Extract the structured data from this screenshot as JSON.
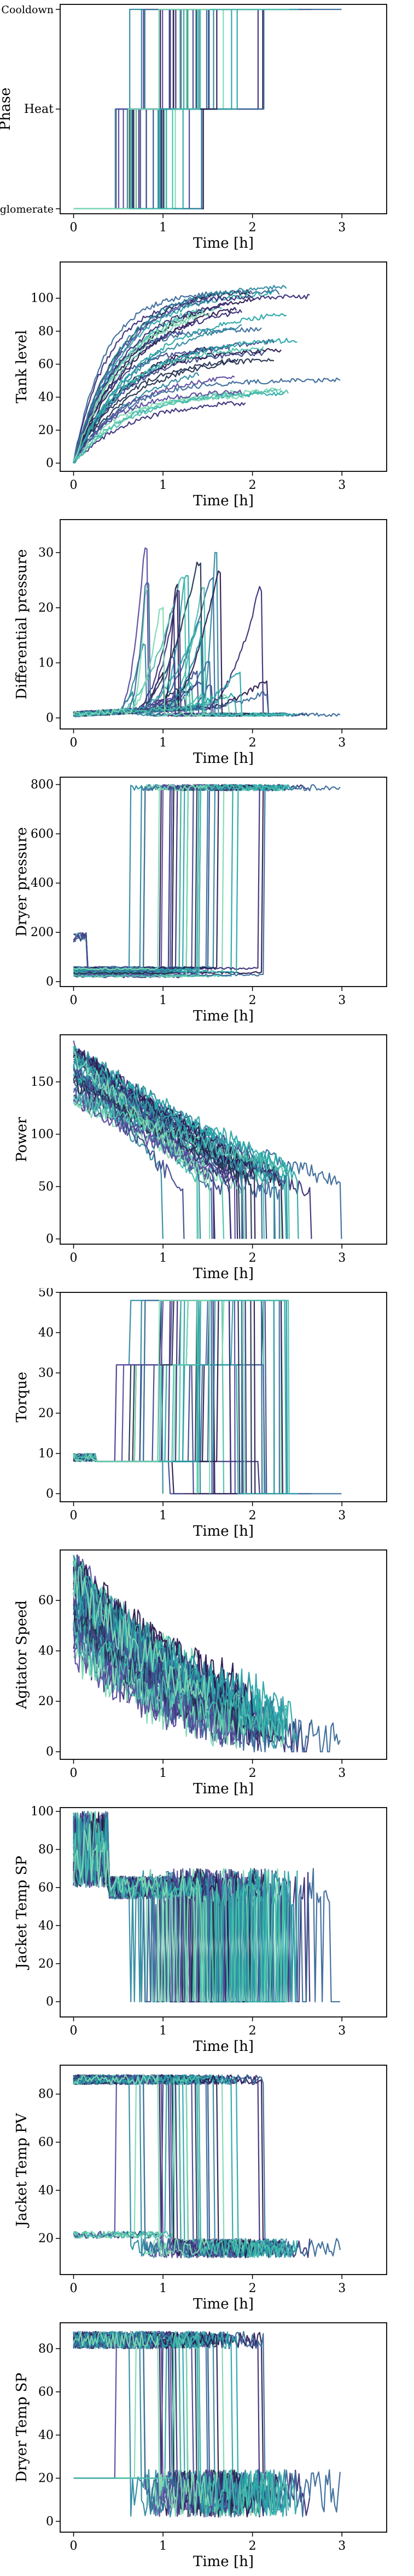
{
  "palette": [
    "#2b1a4f",
    "#3b2f78",
    "#3f4a8c",
    "#3b6a9a",
    "#2e8aa0",
    "#2aa7a8",
    "#4cc0ac",
    "#7ed9b3",
    "#24314f",
    "#5b4a9e"
  ],
  "chart_data": [
    {
      "type": "line",
      "title": "",
      "xlabel": "Time [h]",
      "ylabel": "Phase",
      "xlim": [
        -0.15,
        3.5
      ],
      "ylim": [
        -0.05,
        2.05
      ],
      "xticks": [
        0,
        1,
        2,
        3
      ],
      "xtick_labels": [
        "0",
        "1",
        "2",
        "3"
      ],
      "yticks": [
        0,
        1,
        2
      ],
      "ytick_labels": [
        "Deagglomerate",
        "Heat",
        "Cooldown"
      ],
      "grid": false,
      "legend": "none",
      "series_count": 38,
      "typical": {
        "heat_start_h": [
          0.45,
          1.45
        ],
        "cooldown_start_h": [
          0.9,
          2.7
        ],
        "end_h": [
          1.3,
          3.3
        ]
      }
    },
    {
      "type": "line",
      "title": "",
      "xlabel": "Time [h]",
      "ylabel": "Tank level",
      "xlim": [
        -0.15,
        3.5
      ],
      "ylim": [
        -5,
        122
      ],
      "xticks": [
        0,
        1,
        2,
        3
      ],
      "xtick_labels": [
        "0",
        "1",
        "2",
        "3"
      ],
      "yticks": [
        0,
        20,
        40,
        60,
        80,
        100
      ],
      "ytick_labels": [
        "0",
        "20",
        "40",
        "60",
        "80",
        "100"
      ],
      "grid": false,
      "legend": "none",
      "series_count": 38,
      "typical": {
        "final_level": [
          35,
          115
        ]
      }
    },
    {
      "type": "line",
      "title": "",
      "xlabel": "Time [h]",
      "ylabel": "Differential pressure",
      "xlim": [
        -0.15,
        3.5
      ],
      "ylim": [
        -2,
        36
      ],
      "xticks": [
        0,
        1,
        2,
        3
      ],
      "xtick_labels": [
        "0",
        "1",
        "2",
        "3"
      ],
      "yticks": [
        0,
        10,
        20,
        30
      ],
      "ytick_labels": [
        "0",
        "10",
        "20",
        "30"
      ],
      "grid": false,
      "legend": "none",
      "series_count": 38,
      "typical": {
        "peak": [
          3,
          34
        ]
      }
    },
    {
      "type": "line",
      "title": "",
      "xlabel": "Time [h]",
      "ylabel": "Dryer pressure",
      "xlim": [
        -0.15,
        3.5
      ],
      "ylim": [
        -20,
        830
      ],
      "xticks": [
        0,
        1,
        2,
        3
      ],
      "xtick_labels": [
        "0",
        "1",
        "2",
        "3"
      ],
      "yticks": [
        0,
        200,
        400,
        600,
        800
      ],
      "ytick_labels": [
        "0",
        "200",
        "400",
        "600",
        "800"
      ],
      "grid": false,
      "legend": "none",
      "series_count": 38,
      "typical": {
        "low_level": [
          20,
          60
        ],
        "high_level": [
          770,
          800
        ]
      }
    },
    {
      "type": "line",
      "title": "",
      "xlabel": "Time [h]",
      "ylabel": "Power",
      "xlim": [
        -0.15,
        3.5
      ],
      "ylim": [
        -5,
        195
      ],
      "xticks": [
        0,
        1,
        2,
        3
      ],
      "xtick_labels": [
        "0",
        "1",
        "2",
        "3"
      ],
      "yticks": [
        0,
        50,
        100,
        150
      ],
      "ytick_labels": [
        "0",
        "50",
        "100",
        "150"
      ],
      "grid": false,
      "legend": "none",
      "series_count": 38,
      "typical": {
        "start": [
          130,
          185
        ],
        "end": [
          40,
          70
        ]
      }
    },
    {
      "type": "line",
      "title": "",
      "xlabel": "Time [h]",
      "ylabel": "Torque",
      "xlim": [
        -0.15,
        3.5
      ],
      "ylim": [
        -2,
        50
      ],
      "xticks": [
        0,
        1,
        2,
        3
      ],
      "xtick_labels": [
        "0",
        "1",
        "2",
        "3"
      ],
      "yticks": [
        0,
        10,
        20,
        30,
        40,
        50
      ],
      "ytick_labels": [
        "0",
        "10",
        "20",
        "30",
        "40",
        "50"
      ],
      "grid": false,
      "legend": "none",
      "series_count": 38,
      "typical": {
        "levels": [
          8,
          32,
          48
        ]
      }
    },
    {
      "type": "line",
      "title": "",
      "xlabel": "Time [h]",
      "ylabel": "Agitator Speed",
      "xlim": [
        -0.15,
        3.5
      ],
      "ylim": [
        -3,
        80
      ],
      "xticks": [
        0,
        1,
        2,
        3
      ],
      "xtick_labels": [
        "0",
        "1",
        "2",
        "3"
      ],
      "yticks": [
        0,
        20,
        40,
        60
      ],
      "ytick_labels": [
        "0",
        "20",
        "40",
        "60"
      ],
      "grid": false,
      "legend": "none",
      "series_count": 38,
      "typical": {
        "start": [
          40,
          75
        ],
        "end": [
          0,
          20
        ]
      }
    },
    {
      "type": "line",
      "title": "",
      "xlabel": "Time [h]",
      "ylabel": "Jacket Temp SP",
      "xlim": [
        -0.15,
        3.5
      ],
      "ylim": [
        -8,
        102
      ],
      "xticks": [
        0,
        1,
        2,
        3
      ],
      "xtick_labels": [
        "0",
        "1",
        "2",
        "3"
      ],
      "yticks": [
        0,
        20,
        40,
        60,
        80,
        100
      ],
      "ytick_labels": [
        "0",
        "20",
        "40",
        "60",
        "80",
        "100"
      ],
      "grid": false,
      "legend": "none",
      "series_count": 38,
      "typical": {
        "levels": [
          0,
          60,
          70,
          100
        ]
      }
    },
    {
      "type": "line",
      "title": "",
      "xlabel": "Time [h]",
      "ylabel": "Jacket Temp PV",
      "xlim": [
        -0.15,
        3.5
      ],
      "ylim": [
        5,
        92
      ],
      "xticks": [
        0,
        1,
        2,
        3
      ],
      "xtick_labels": [
        "0",
        "1",
        "2",
        "3"
      ],
      "yticks": [
        20,
        40,
        60,
        80
      ],
      "ytick_labels": [
        "20",
        "40",
        "60",
        "80"
      ],
      "grid": false,
      "legend": "none",
      "series_count": 38,
      "typical": {
        "high_level": [
          84,
          89
        ],
        "low_level": [
          10,
          20
        ]
      }
    },
    {
      "type": "line",
      "title": "",
      "xlabel": "Time [h]",
      "ylabel": "Dryer Temp SP",
      "xlim": [
        -0.15,
        3.5
      ],
      "ylim": [
        -5,
        92
      ],
      "xticks": [
        0,
        1,
        2,
        3
      ],
      "xtick_labels": [
        "0",
        "1",
        "2",
        "3"
      ],
      "yticks": [
        0,
        20,
        40,
        60,
        80
      ],
      "ytick_labels": [
        "0",
        "20",
        "40",
        "60",
        "80"
      ],
      "grid": false,
      "legend": "none",
      "series_count": 38,
      "typical": {
        "high_level": [
          80,
          88
        ],
        "low_level": [
          0,
          25
        ]
      }
    }
  ]
}
